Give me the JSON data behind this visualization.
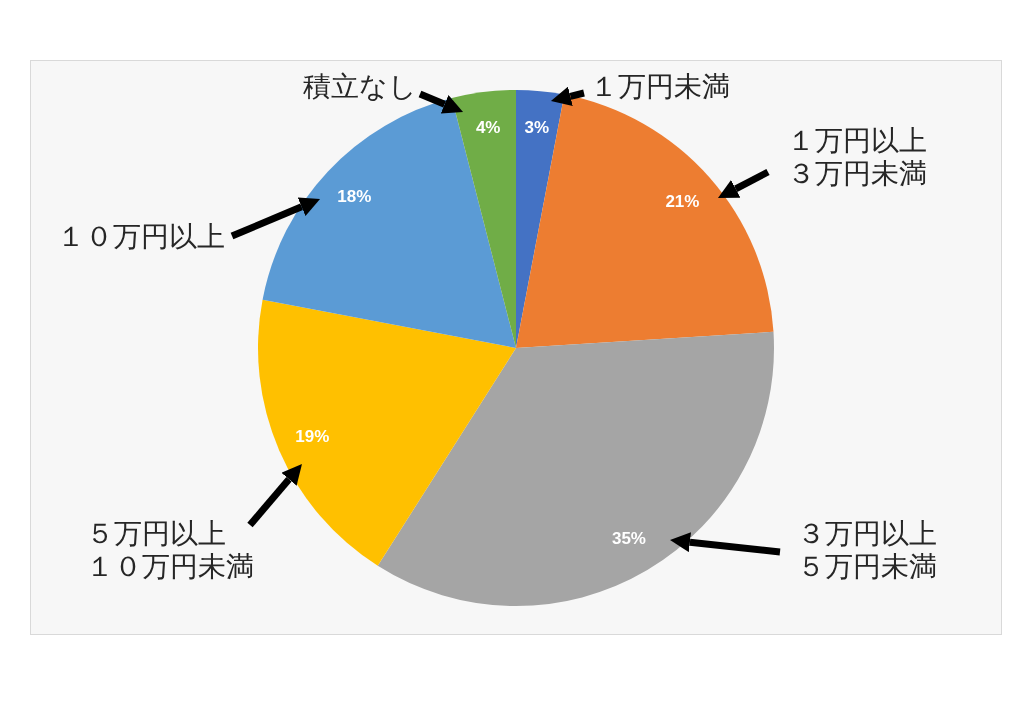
{
  "chart_data": {
    "type": "pie",
    "categories": [
      "１万円未満",
      "１万円以上３万円未満",
      "３万円以上５万円未満",
      "５万円以上１０万円未満",
      "１０万円以上",
      "積立なし"
    ],
    "values": [
      3,
      21,
      35,
      19,
      18,
      4
    ],
    "colors": [
      "#4472c4",
      "#ed7d31",
      "#a5a5a5",
      "#ffc000",
      "#5b9bd5",
      "#70ad47"
    ],
    "value_labels": [
      "3%",
      "21%",
      "35%",
      "19%",
      "18%",
      "4%"
    ]
  }
}
